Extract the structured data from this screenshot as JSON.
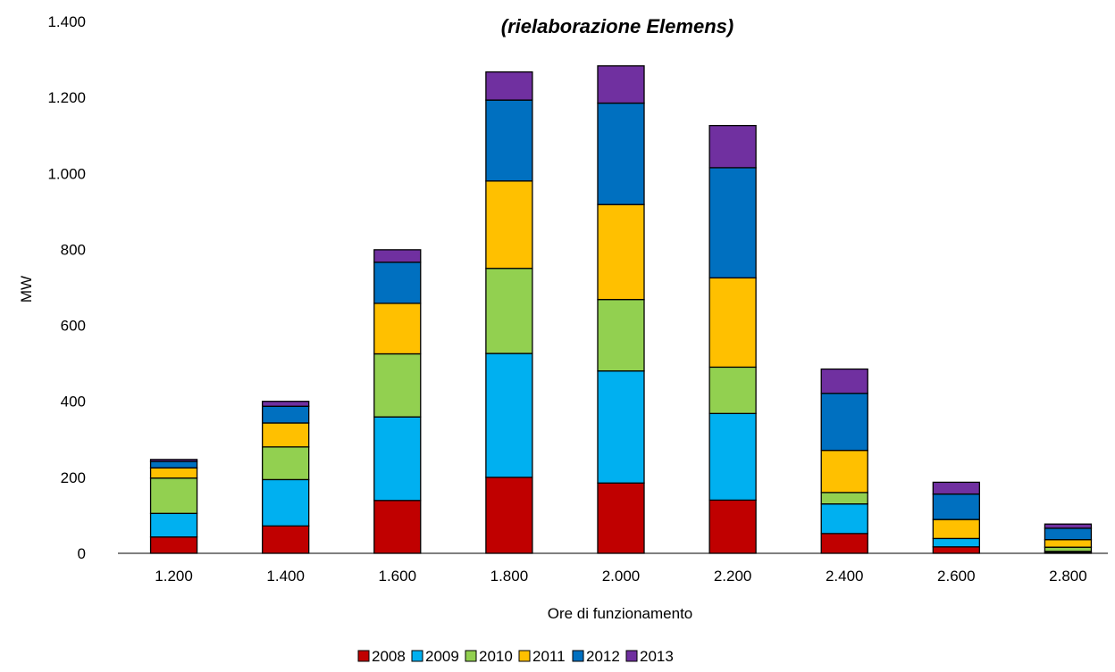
{
  "chart_data": {
    "type": "bar",
    "stacked": true,
    "title_lines": [
      "",
      "(rielaborazione Elemens)"
    ],
    "xlabel": "Ore di funzionamento",
    "ylabel": "MW",
    "ylim": [
      0,
      1400
    ],
    "yticks": [
      0,
      200,
      400,
      600,
      800,
      1000,
      1200,
      1400
    ],
    "ytick_labels": [
      "0",
      "200",
      "400",
      "600",
      "800",
      "1.000",
      "1.200",
      "1.400"
    ],
    "categories": [
      "1.200",
      "1.400",
      "1.600",
      "1.800",
      "2.000",
      "2.200",
      "2.400",
      "2.600",
      "2.800"
    ],
    "series": [
      {
        "name": "2008",
        "color": "#c00000",
        "values": [
          43,
          72,
          139,
          200,
          185,
          140,
          52,
          17,
          3
        ]
      },
      {
        "name": "2009",
        "color": "#00b0f0",
        "values": [
          62,
          122,
          220,
          326,
          295,
          228,
          78,
          22,
          2
        ]
      },
      {
        "name": "2010",
        "color": "#92d050",
        "values": [
          93,
          86,
          166,
          224,
          188,
          122,
          30,
          0,
          11
        ]
      },
      {
        "name": "2011",
        "color": "#ffc000",
        "values": [
          27,
          63,
          133,
          230,
          250,
          235,
          111,
          50,
          20
        ]
      },
      {
        "name": "2012",
        "color": "#0070c0",
        "values": [
          17,
          44,
          108,
          213,
          267,
          290,
          150,
          67,
          30
        ]
      },
      {
        "name": "2013",
        "color": "#7030a0",
        "values": [
          5,
          13,
          33,
          74,
          98,
          111,
          64,
          31,
          11
        ]
      }
    ],
    "grid": false,
    "legend_position": "bottom"
  }
}
